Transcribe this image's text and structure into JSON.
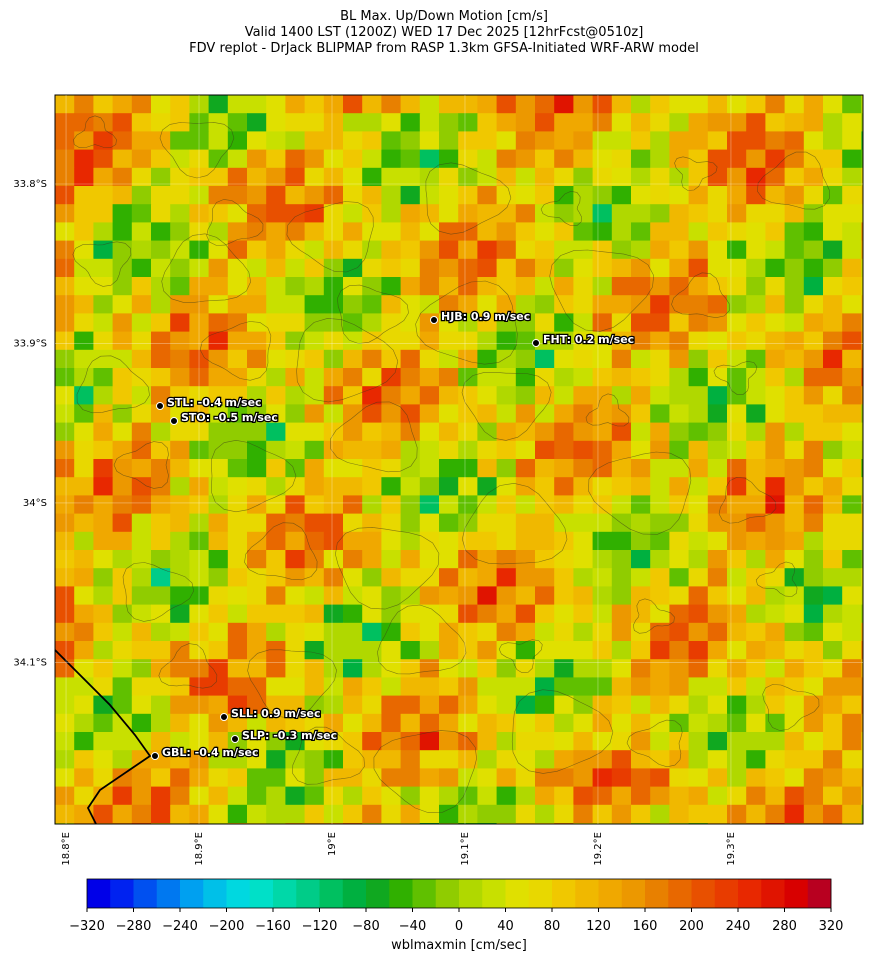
{
  "title_lines": [
    "BL Max. Up/Down Motion [cm/s]",
    "Valid 1400 LST (1200Z) WED 17 Dec 2025 [12hrFcst@0510z]",
    "FDV replot - DrJack BLIPMAP from RASP 1.3km GFSA-Initiated WRF-ARW model"
  ],
  "map": {
    "xlim": [
      18.7917,
      19.3993
    ],
    "ylim": [
      -34.2013,
      -33.7442
    ],
    "xticks": [
      {
        "value": 18.8,
        "label": "18.8°E"
      },
      {
        "value": 18.9,
        "label": "18.9°E"
      },
      {
        "value": 19.0,
        "label": "19°E"
      },
      {
        "value": 19.1,
        "label": "19.1°E"
      },
      {
        "value": 19.2,
        "label": "19.2°E"
      },
      {
        "value": 19.3,
        "label": "19.3°E"
      }
    ],
    "yticks": [
      {
        "value": -33.8,
        "label": "33.8°S"
      },
      {
        "value": -33.9,
        "label": "33.9°S"
      },
      {
        "value": -34.0,
        "label": "34°S"
      },
      {
        "value": -34.1,
        "label": "34.1°S"
      }
    ],
    "stations": [
      "HJB: 0.9 m/sec",
      "FHT: 0.2 m/sec",
      "STL: -0.4 m/sec",
      "STO: -0.5 m/sec",
      "SLL: 0.9 m/sec",
      "SLP: -0.3 m/sec",
      "GBL: -0.4 m/sec"
    ]
  },
  "colorbar": {
    "label": "wblmaxmin [cm/sec]",
    "levels": [
      -320,
      -300,
      -280,
      -260,
      -240,
      -220,
      -200,
      -180,
      -160,
      -140,
      -120,
      -100,
      -80,
      -60,
      -40,
      -20,
      0,
      20,
      40,
      60,
      80,
      100,
      120,
      140,
      160,
      180,
      200,
      220,
      240,
      260,
      280,
      300,
      320
    ],
    "colors": [
      "#0000e8",
      "#0022f0",
      "#0050f0",
      "#0078f0",
      "#00a0f0",
      "#00c0e8",
      "#00d8e0",
      "#00e0c8",
      "#00d8a8",
      "#00cc88",
      "#00c060",
      "#00b040",
      "#10a820",
      "#30b000",
      "#60c000",
      "#90cc00",
      "#b0d800",
      "#c8e000",
      "#e0e000",
      "#e8d800",
      "#f0c800",
      "#f0b800",
      "#f0a800",
      "#ec9800",
      "#e88000",
      "#e86800",
      "#e85000",
      "#e83c00",
      "#e82800",
      "#e01400",
      "#d80000",
      "#b80020"
    ],
    "ticks": [
      {
        "value": -320,
        "label": "−320"
      },
      {
        "value": -280,
        "label": "−280"
      },
      {
        "value": -240,
        "label": "−240"
      },
      {
        "value": -200,
        "label": "−200"
      },
      {
        "value": -160,
        "label": "−160"
      },
      {
        "value": -120,
        "label": "−120"
      },
      {
        "value": -80,
        "label": "−80"
      },
      {
        "value": -40,
        "label": "−40"
      },
      0,
      40,
      80,
      120,
      160,
      200,
      240,
      280,
      320
    ]
  }
}
